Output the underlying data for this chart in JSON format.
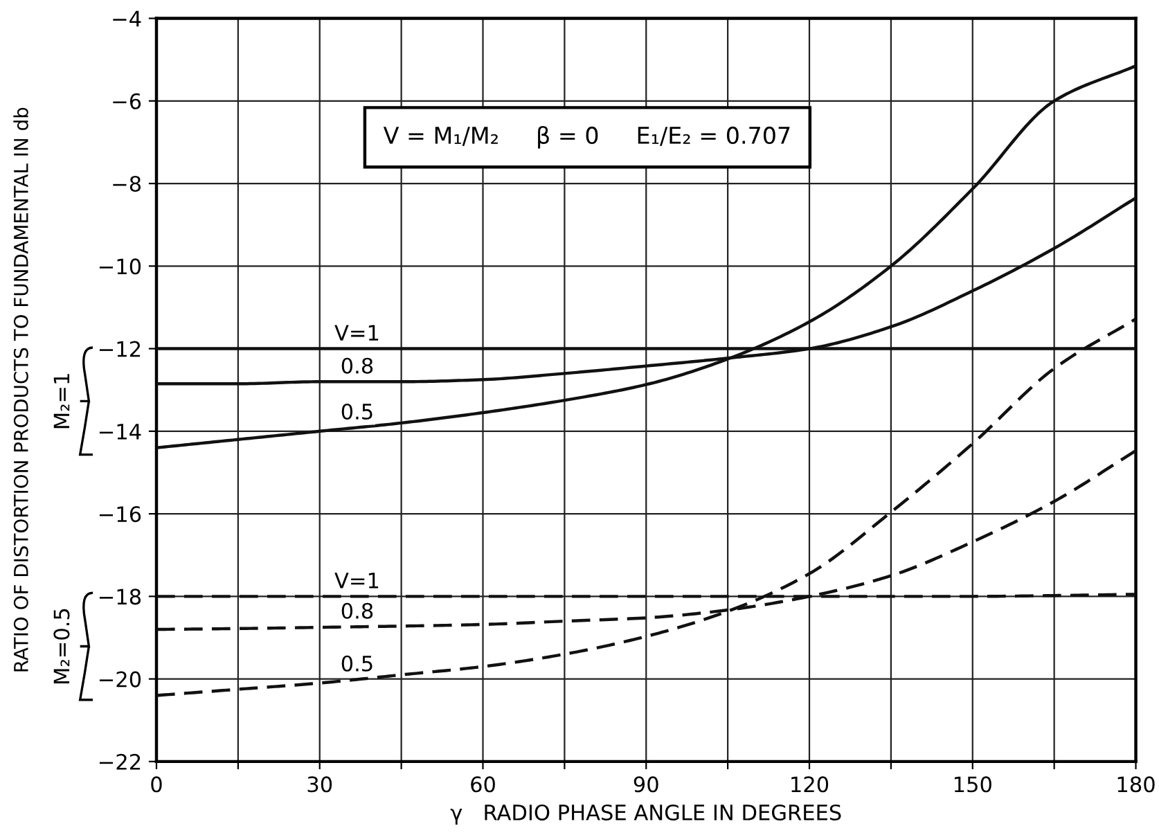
{
  "chart_data": {
    "type": "line",
    "xlabel": "γ   RADIO PHASE ANGLE IN DEGREES",
    "ylabel": "RATIO OF DISTORTION PRODUCTS TO FUNDAMENTAL IN db",
    "x": [
      0,
      15,
      30,
      45,
      60,
      75,
      90,
      105,
      120,
      135,
      150,
      165,
      180
    ],
    "series": [
      {
        "name": "V=1",
        "color": "#111111",
        "line_style": "solid",
        "values": [
          -12,
          -12,
          -12,
          -12,
          -12,
          -12,
          -12,
          -12,
          -12,
          -12,
          -12,
          -12,
          -12
        ]
      },
      {
        "name": "0.8",
        "color": "#111111",
        "line_style": "solid",
        "values": [
          -12.85,
          -12.85,
          -12.8,
          -12.8,
          -12.75,
          -12.6,
          -12.42,
          -12.23,
          -12,
          -11.47,
          -10.6,
          -9.57,
          -8.35
        ]
      },
      {
        "name": "0.5",
        "color": "#111111",
        "line_style": "solid",
        "values": [
          -14.4,
          -14.2,
          -14,
          -13.8,
          -13.55,
          -13.25,
          -12.87,
          -12.25,
          -11.35,
          -10,
          -8.13,
          -6,
          -5.15
        ]
      },
      {
        "name": "V=1",
        "color": "#111111",
        "line_style": "dashed",
        "values": [
          -18,
          -18,
          -18,
          -18,
          -18,
          -18,
          -18,
          -18,
          -18,
          -18,
          -18,
          -17.98,
          -17.95
        ]
      },
      {
        "name": "0.8",
        "color": "#111111",
        "line_style": "dashed",
        "values": [
          -18.8,
          -18.78,
          -18.75,
          -18.72,
          -18.68,
          -18.6,
          -18.52,
          -18.33,
          -18,
          -17.5,
          -16.68,
          -15.7,
          -14.47
        ]
      },
      {
        "name": "0.5",
        "color": "#111111",
        "line_style": "dashed",
        "values": [
          -20.4,
          -20.25,
          -20.1,
          -19.9,
          -19.7,
          -19.4,
          -18.97,
          -18.36,
          -17.45,
          -15.96,
          -14.3,
          -12.48,
          -11.28
        ]
      }
    ],
    "xlim": [
      0,
      180
    ],
    "ylim": [
      -22,
      -4
    ],
    "xticks": [
      0,
      {
        "value": 15,
        "label": null
      },
      30,
      {
        "value": 45,
        "label": null
      },
      60,
      {
        "value": 75,
        "label": null
      },
      90,
      {
        "value": 105,
        "label": null
      },
      120,
      {
        "value": 135,
        "label": null
      },
      150,
      {
        "value": 165,
        "label": null
      },
      180
    ],
    "yticks": [
      {
        "value": -22,
        "label": "−22"
      },
      {
        "value": -20,
        "label": "−20"
      },
      {
        "value": -18,
        "label": "−18"
      },
      {
        "value": -16,
        "label": "−16"
      },
      {
        "value": -14,
        "label": "−14"
      },
      {
        "value": -12,
        "label": "−12"
      },
      {
        "value": -10,
        "label": "−10"
      },
      {
        "value": -8,
        "label": "−8"
      },
      {
        "value": -6,
        "label": "−6"
      },
      {
        "value": -4,
        "label": "−4"
      }
    ],
    "grid": true,
    "annotations": [
      "V = M₁/M₂     β = 0     E₁/E₂ = 0.707",
      "M₂=1",
      "M₂=0.5"
    ]
  }
}
